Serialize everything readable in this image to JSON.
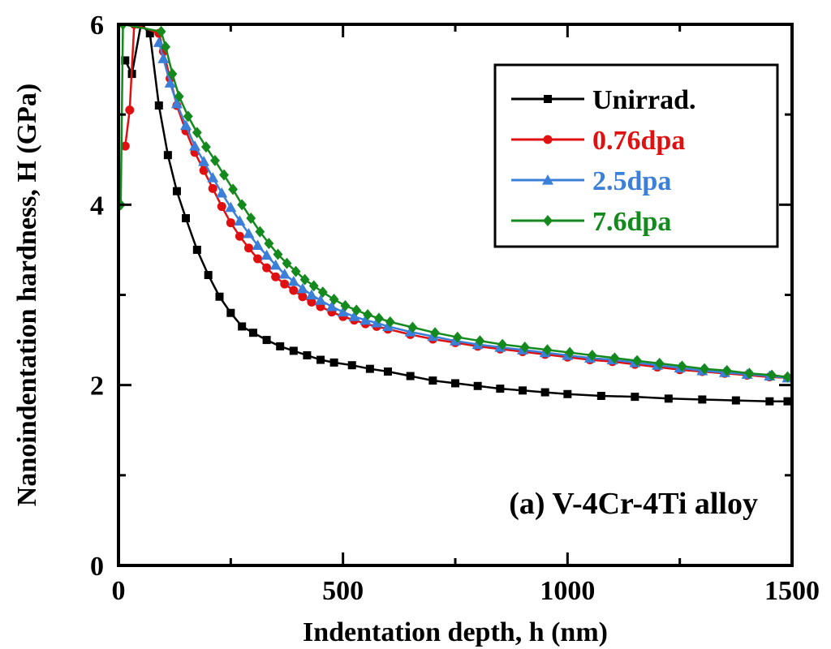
{
  "chart_data": {
    "type": "line",
    "title": "",
    "xlabel": "Indentation depth, h (nm)",
    "ylabel": "Nanoindentation hardness, H (GPa)",
    "xlim": [
      0,
      1500
    ],
    "ylim": [
      0,
      6
    ],
    "xticks": [
      0,
      500,
      1000,
      1500
    ],
    "yticks": [
      0,
      2,
      4,
      6
    ],
    "xtick_labels": [
      "0",
      "500",
      "1000",
      "1500"
    ],
    "ytick_labels": [
      "0",
      "2",
      "4",
      "6"
    ],
    "grid": false,
    "legend_position": "top-right",
    "annotation": "(a) V-4Cr-4Ti alloy",
    "series": [
      {
        "name": "Unirrad.",
        "color": "#000000",
        "marker": "square",
        "x": [
          15,
          30,
          50,
          70,
          90,
          110,
          130,
          150,
          175,
          200,
          225,
          250,
          275,
          300,
          330,
          360,
          390,
          420,
          450,
          480,
          520,
          560,
          600,
          650,
          700,
          750,
          800,
          850,
          900,
          950,
          1000,
          1075,
          1150,
          1225,
          1300,
          1375,
          1450,
          1490
        ],
        "y": [
          5.6,
          5.45,
          6.0,
          5.9,
          5.1,
          4.55,
          4.15,
          3.85,
          3.5,
          3.22,
          2.98,
          2.8,
          2.65,
          2.58,
          2.5,
          2.43,
          2.38,
          2.33,
          2.28,
          2.25,
          2.22,
          2.18,
          2.15,
          2.1,
          2.05,
          2.02,
          1.99,
          1.96,
          1.94,
          1.92,
          1.9,
          1.88,
          1.87,
          1.85,
          1.84,
          1.83,
          1.82,
          1.82
        ]
      },
      {
        "name": "0.76dpa",
        "color": "#e01010",
        "marker": "circle",
        "x": [
          15,
          25,
          35,
          90,
          100,
          115,
          130,
          150,
          170,
          190,
          210,
          230,
          250,
          270,
          290,
          310,
          330,
          350,
          370,
          390,
          410,
          430,
          450,
          475,
          500,
          525,
          550,
          575,
          600,
          650,
          700,
          750,
          800,
          850,
          900,
          950,
          1000,
          1050,
          1100,
          1150,
          1200,
          1250,
          1300,
          1350,
          1400,
          1450,
          1490
        ],
        "y": [
          4.65,
          5.05,
          6.0,
          5.9,
          5.7,
          5.4,
          5.1,
          4.82,
          4.58,
          4.38,
          4.18,
          3.98,
          3.8,
          3.65,
          3.52,
          3.4,
          3.3,
          3.2,
          3.12,
          3.05,
          2.98,
          2.92,
          2.87,
          2.81,
          2.76,
          2.72,
          2.68,
          2.65,
          2.62,
          2.56,
          2.51,
          2.47,
          2.43,
          2.4,
          2.37,
          2.34,
          2.31,
          2.28,
          2.26,
          2.23,
          2.2,
          2.17,
          2.15,
          2.13,
          2.11,
          2.09,
          2.08
        ]
      },
      {
        "name": "2.5dpa",
        "color": "#3b7fd9",
        "marker": "triangle",
        "x": [
          90,
          100,
          115,
          130,
          150,
          170,
          190,
          210,
          230,
          250,
          270,
          290,
          310,
          330,
          350,
          370,
          390,
          410,
          430,
          450,
          475,
          500,
          525,
          550,
          575,
          600,
          650,
          700,
          750,
          800,
          850,
          900,
          950,
          1000,
          1050,
          1100,
          1150,
          1200,
          1250,
          1300,
          1350,
          1400,
          1450,
          1490
        ],
        "y": [
          5.8,
          5.62,
          5.35,
          5.12,
          4.88,
          4.65,
          4.48,
          4.3,
          4.13,
          3.97,
          3.82,
          3.68,
          3.55,
          3.44,
          3.33,
          3.23,
          3.15,
          3.07,
          3.0,
          2.94,
          2.87,
          2.81,
          2.76,
          2.72,
          2.69,
          2.65,
          2.59,
          2.54,
          2.49,
          2.45,
          2.42,
          2.39,
          2.36,
          2.33,
          2.3,
          2.28,
          2.25,
          2.22,
          2.19,
          2.16,
          2.14,
          2.12,
          2.1,
          2.08
        ]
      },
      {
        "name": "7.6dpa",
        "color": "#148a1e",
        "marker": "diamond",
        "x": [
          5,
          10,
          95,
          105,
          120,
          135,
          155,
          175,
          195,
          215,
          235,
          255,
          275,
          295,
          315,
          335,
          355,
          375,
          395,
          415,
          435,
          455,
          480,
          505,
          530,
          555,
          580,
          605,
          655,
          705,
          755,
          805,
          855,
          905,
          955,
          1005,
          1055,
          1105,
          1155,
          1205,
          1255,
          1305,
          1355,
          1405,
          1455,
          1490
        ],
        "y": [
          4.0,
          6.0,
          5.92,
          5.75,
          5.45,
          5.2,
          4.98,
          4.8,
          4.64,
          4.49,
          4.33,
          4.17,
          4.0,
          3.85,
          3.7,
          3.57,
          3.45,
          3.35,
          3.26,
          3.17,
          3.1,
          3.03,
          2.95,
          2.88,
          2.83,
          2.78,
          2.74,
          2.7,
          2.64,
          2.58,
          2.53,
          2.49,
          2.45,
          2.42,
          2.39,
          2.36,
          2.33,
          2.3,
          2.27,
          2.24,
          2.21,
          2.18,
          2.16,
          2.13,
          2.11,
          2.09
        ]
      }
    ]
  }
}
